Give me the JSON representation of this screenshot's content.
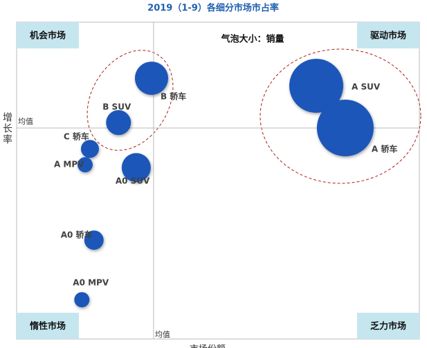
{
  "chart_data": {
    "type": "bubble",
    "title": "2019（1-9）各细分市场市占率",
    "subtitle": "气泡大小：销量",
    "x_label": "市场份额",
    "y_label": "增长率",
    "xlim": [
      0,
      100
    ],
    "ylim": [
      0,
      100
    ],
    "mean_x": 34.0,
    "mean_y": 66.6,
    "mean_label": "均值",
    "quadrants": [
      "机会市场",
      "驱动市场",
      "惰性市场",
      "乏力市场"
    ],
    "color": "#1f56b8",
    "series": [
      {
        "name": "销量",
        "color": "#1f56b8",
        "labels": [
          "B 轿车",
          "B SUV",
          "C 轿车",
          "A MPV",
          "A0 SUV",
          "A0 轿车",
          "A0 MPV",
          "A SUV",
          "A 轿车"
        ],
        "x": [
          33.5,
          25.3,
          18.2,
          17.0,
          29.7,
          19.2,
          16.2,
          74.4,
          81.6
        ],
        "y": [
          82.3,
          68.3,
          60.0,
          55.0,
          54.1,
          31.2,
          12.4,
          79.9,
          66.6
        ],
        "size": [
          576,
          324,
          169,
          121,
          441,
          196,
          121,
          1521,
          1681
        ]
      }
    ]
  }
}
